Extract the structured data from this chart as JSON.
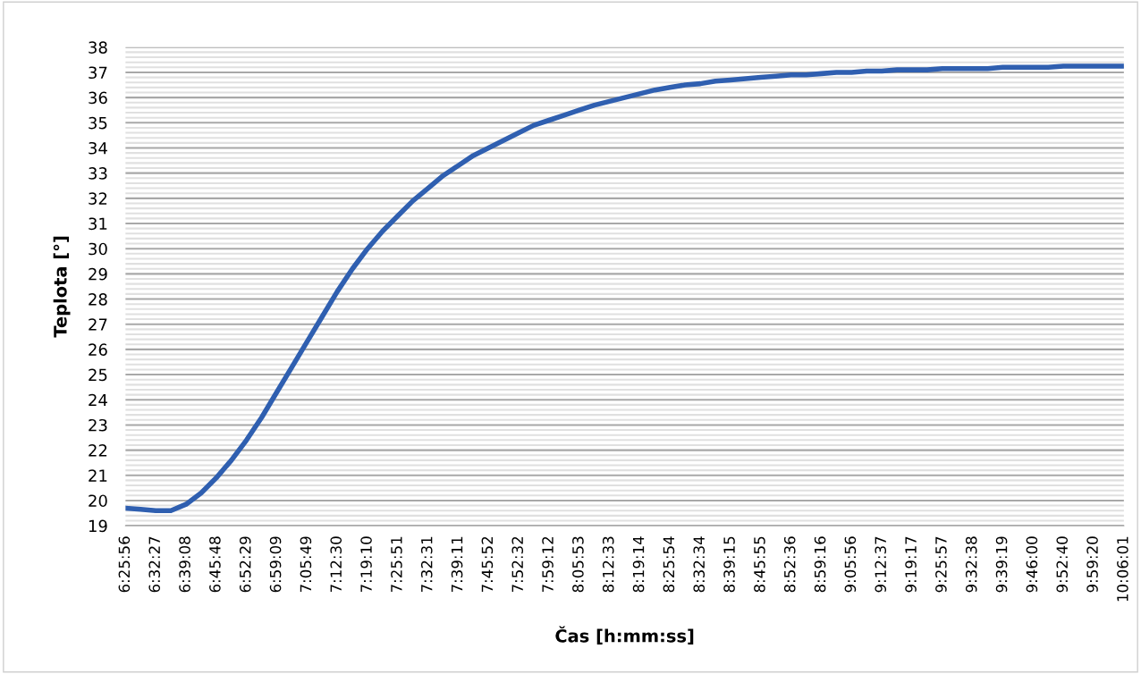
{
  "chart_data": {
    "type": "line",
    "xlabel": "Čas [h:mm:ss]",
    "ylabel": "Teplota [°]",
    "categories": [
      "6:25:56",
      null,
      "6:32:27",
      null,
      "6:39:08",
      null,
      "6:45:48",
      null,
      "6:52:29",
      null,
      "6:59:09",
      null,
      "7:05:49",
      null,
      "7:12:30",
      null,
      "7:19:10",
      null,
      "7:25:51",
      null,
      "7:32:31",
      null,
      "7:39:11",
      null,
      "7:45:52",
      null,
      "7:52:32",
      null,
      "7:59:12",
      null,
      "8:05:53",
      null,
      "8:12:33",
      null,
      "8:19:14",
      null,
      "8:25:54",
      null,
      "8:32:34",
      null,
      "8:39:15",
      null,
      "8:45:55",
      null,
      "8:52:36",
      null,
      "8:59:16",
      null,
      "9:05:56",
      null,
      "9:12:37",
      null,
      "9:19:17",
      null,
      "9:25:57",
      null,
      "9:32:38",
      null,
      "9:39:19",
      null,
      "9:46:00",
      null,
      "9:52:40",
      null,
      "9:59:20",
      null,
      "10:06:01"
    ],
    "series": [
      {
        "color": "#2f5fb0",
        "values": [
          19.7,
          19.65,
          19.6,
          19.6,
          19.85,
          20.3,
          20.9,
          21.6,
          22.4,
          23.3,
          24.3,
          25.3,
          26.3,
          27.3,
          28.3,
          29.2,
          30.0,
          30.7,
          31.3,
          31.9,
          32.4,
          32.9,
          33.3,
          33.7,
          34.0,
          34.3,
          34.6,
          34.9,
          35.1,
          35.3,
          35.5,
          35.7,
          35.85,
          36.0,
          36.15,
          36.3,
          36.4,
          36.5,
          36.55,
          36.65,
          36.7,
          36.75,
          36.8,
          36.85,
          36.9,
          36.9,
          36.95,
          37.0,
          37.0,
          37.05,
          37.05,
          37.1,
          37.1,
          37.1,
          37.15,
          37.15,
          37.15,
          37.15,
          37.2,
          37.2,
          37.2,
          37.2,
          37.25,
          37.25,
          37.25,
          37.25,
          37.25
        ]
      }
    ],
    "ylim": [
      19,
      38
    ],
    "yticks": [
      19,
      20,
      21,
      22,
      23,
      24,
      25,
      26,
      27,
      28,
      29,
      30,
      31,
      32,
      33,
      34,
      35,
      36,
      37,
      38
    ],
    "grid": true,
    "legend": false,
    "marker": "none",
    "line_style": "solid"
  }
}
